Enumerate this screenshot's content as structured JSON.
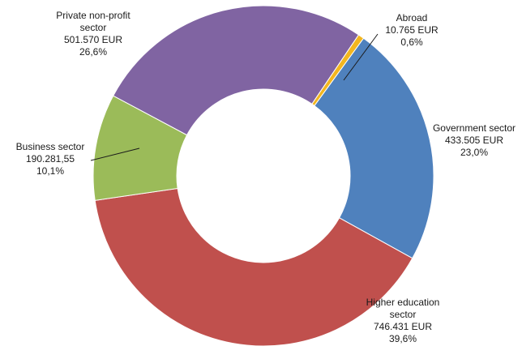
{
  "chart_data": {
    "type": "pie",
    "style": "donut",
    "slices": [
      {
        "name": "Abroad",
        "lines": [
          "Abroad"
        ],
        "value_label": "10.765 EUR",
        "value": 10765,
        "percent": "0,6%",
        "color": "#f2b620"
      },
      {
        "name": "Government sector",
        "lines": [
          "Government sector"
        ],
        "value_label": "433.505 EUR",
        "value": 433505,
        "percent": "23,0%",
        "color": "#4f81bd"
      },
      {
        "name": "Higher education sector",
        "lines": [
          "Higher education",
          "sector"
        ],
        "value_label": "746.431 EUR",
        "value": 746431,
        "percent": "39,6%",
        "color": "#c0504d"
      },
      {
        "name": "Business sector",
        "lines": [
          "Business sector"
        ],
        "value_label": "190.281,55",
        "value": 190281.55,
        "percent": "10,1%",
        "color": "#9bbb59"
      },
      {
        "name": "Private non-profit sector",
        "lines": [
          "Private non-profit",
          "sector"
        ],
        "value_label": "501.570 EUR",
        "value": 501570,
        "percent": "26,6%",
        "color": "#8064a2"
      }
    ]
  }
}
